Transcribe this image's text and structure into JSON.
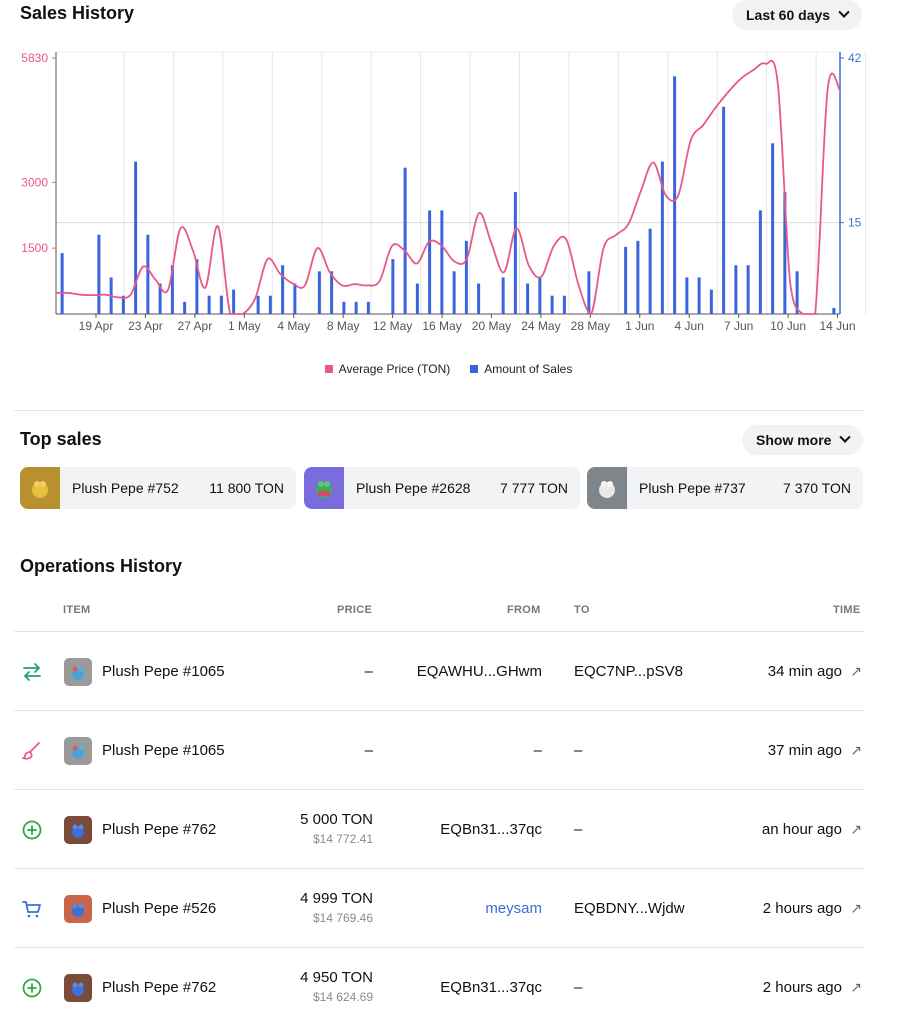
{
  "sales_history": {
    "title": "Sales History",
    "range_button": "Last 60 days"
  },
  "chart_data": {
    "type": "bar",
    "x_tick_labels": [
      "19 Apr",
      "23 Apr",
      "27 Apr",
      "1 May",
      "4 May",
      "8 May",
      "12 May",
      "16 May",
      "20 May",
      "24 May",
      "28 May",
      "1 Jun",
      "4 Jun",
      "7 Jun",
      "10 Jun",
      "14 Jun"
    ],
    "left_axis_ticks": [
      "5830",
      "3000",
      "1500"
    ],
    "right_axis_ticks": [
      "42",
      "15"
    ],
    "left_axis_range": [
      0,
      5830
    ],
    "right_axis_range": [
      0,
      42
    ],
    "axis_colors": {
      "left": "#e85a86",
      "right": "#3b6fd8"
    },
    "series": [
      {
        "name": "Amount of Sales",
        "color": "#3b63dc",
        "type": "bar",
        "axis": "right",
        "values": [
          10,
          0,
          0,
          13,
          6,
          3,
          25,
          13,
          5,
          8,
          2,
          9,
          3,
          3,
          4,
          0,
          3,
          3,
          8,
          5,
          0,
          7,
          7,
          2,
          2,
          2,
          0,
          9,
          24,
          5,
          17,
          17,
          7,
          12,
          5,
          0,
          6,
          20,
          5,
          6,
          3,
          3,
          0,
          7,
          0,
          0,
          11,
          12,
          14,
          25,
          39,
          6,
          6,
          4,
          34,
          8,
          8,
          17,
          28,
          20,
          7,
          0,
          0,
          1
        ]
      },
      {
        "name": "Average Price (TON)",
        "color": "#e85a86",
        "type": "line",
        "axis": "left",
        "values": [
          480,
          480,
          440,
          430,
          440,
          380,
          440,
          1080,
          780,
          550,
          1950,
          1450,
          600,
          2000,
          0,
          0,
          350,
          1250,
          920,
          700,
          650,
          1500,
          950,
          650,
          680,
          650,
          750,
          1550,
          1450,
          1150,
          1650,
          1550,
          1200,
          1250,
          2300,
          1600,
          950,
          1950,
          1100,
          850,
          1550,
          1700,
          650,
          0,
          1500,
          1800,
          2050,
          2800,
          3450,
          2700,
          2700,
          3950,
          4300,
          4700,
          5050,
          5350,
          5550,
          5700,
          5250,
          700,
          0,
          0,
          5100,
          5100
        ]
      }
    ],
    "legend": [
      {
        "label": "Average Price (TON)",
        "color": "#e85a86"
      },
      {
        "label": "Amount of Sales",
        "color": "#3b63dc"
      }
    ],
    "legend_position": "bottom-center",
    "grid": true
  },
  "top_sales": {
    "title": "Top sales",
    "show_more": "Show more",
    "items": [
      {
        "name": "Plush Pepe #752",
        "price": "11 800 TON",
        "thumb_color": "#b8902f"
      },
      {
        "name": "Plush Pepe #2628",
        "price": "7 777 TON",
        "thumb_color": "#7a6cdc"
      },
      {
        "name": "Plush Pepe #737",
        "price": "7 370 TON",
        "thumb_color": "#7e868c"
      }
    ]
  },
  "operations": {
    "title": "Operations History",
    "columns": {
      "item": "ITEM",
      "price": "PRICE",
      "from": "FROM",
      "to": "TO",
      "time": "TIME"
    },
    "rows": [
      {
        "type_icon": "transfer-icon",
        "item": "Plush Pepe #1065",
        "price": "–",
        "price_usd": "",
        "from": "EQAWHU...GHwm",
        "from_link": false,
        "to": "EQC7NP...pSV8",
        "time": "34 min ago",
        "avatar_color": "#9a9a9a"
      },
      {
        "type_icon": "brush-icon",
        "item": "Plush Pepe #1065",
        "price": "–",
        "price_usd": "",
        "from": "–",
        "from_link": false,
        "to": "–",
        "time": "37 min ago",
        "avatar_color": "#9a9a9a"
      },
      {
        "type_icon": "plus-circle-icon",
        "item": "Plush Pepe #762",
        "price": "5 000 TON",
        "price_usd": "$14 772.41",
        "from": "EQBn31...37qc",
        "from_link": false,
        "to": "–",
        "time": "an hour ago",
        "avatar_color": "#7a4a3a"
      },
      {
        "type_icon": "cart-icon",
        "item": "Plush Pepe #526",
        "price": "4 999 TON",
        "price_usd": "$14 769.46",
        "from": "meysam",
        "from_link": true,
        "to": "EQBDNY...Wjdw",
        "time": "2 hours ago",
        "avatar_color": "#c9654a"
      },
      {
        "type_icon": "plus-circle-icon",
        "item": "Plush Pepe #762",
        "price": "4 950 TON",
        "price_usd": "$14 624.69",
        "from": "EQBn31...37qc",
        "from_link": false,
        "to": "–",
        "time": "2 hours ago",
        "avatar_color": "#7a4a3a"
      }
    ]
  }
}
